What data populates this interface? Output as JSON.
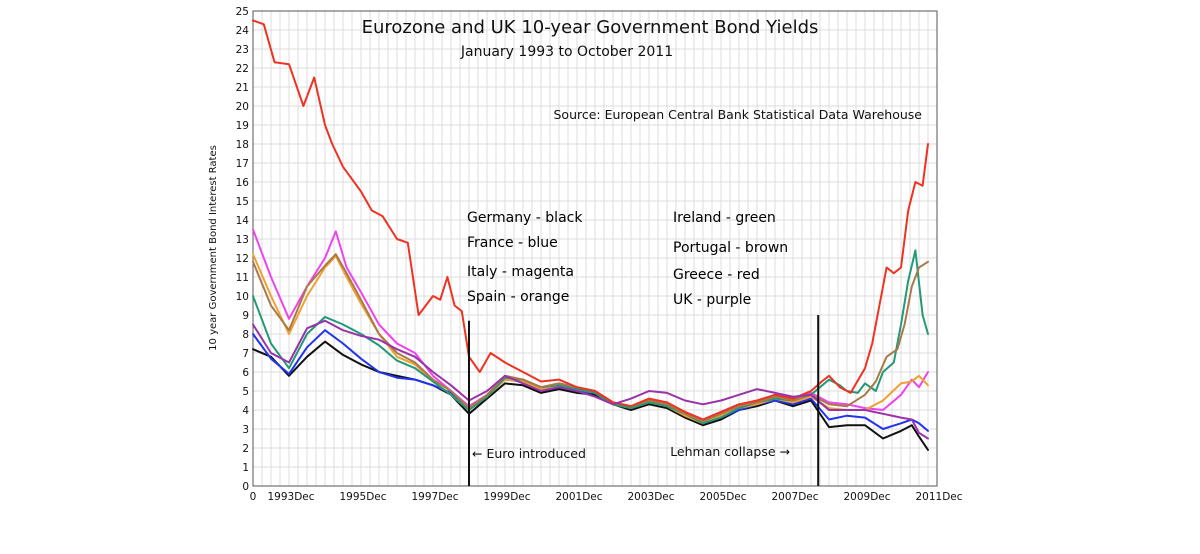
{
  "chart_data": {
    "type": "line",
    "title": "Eurozone and UK 10-year Government Bond Yields",
    "subtitle": "January 1993 to October 2011",
    "source": "Source:  European Central Bank Statistical Data Warehouse",
    "ylabel": "10 year Government Bond Interest Rates",
    "xlim": [
      1993.0,
      2012.0
    ],
    "ylim": [
      0,
      25
    ],
    "yticks": [
      0,
      1,
      2,
      3,
      4,
      5,
      6,
      7,
      8,
      9,
      10,
      11,
      12,
      13,
      14,
      15,
      16,
      17,
      18,
      19,
      20,
      21,
      22,
      23,
      24,
      25
    ],
    "xticks": [
      {
        "value": 1993.0,
        "label": "0"
      },
      {
        "value": 1994.0,
        "label": "1993Dec"
      },
      {
        "value": 1996.0,
        "label": "1995Dec"
      },
      {
        "value": 1998.0,
        "label": "1997Dec"
      },
      {
        "value": 2000.0,
        "label": "1999Dec"
      },
      {
        "value": 2002.0,
        "label": "2001Dec"
      },
      {
        "value": 2004.0,
        "label": "2003Dec"
      },
      {
        "value": 2006.0,
        "label": "2005Dec"
      },
      {
        "value": 2008.0,
        "label": "2007Dec"
      },
      {
        "value": 2010.0,
        "label": "2009Dec"
      },
      {
        "value": 2012.0,
        "label": "2011Dec"
      }
    ],
    "grid": true,
    "events": [
      {
        "x": 1999.0,
        "label": "← Euro introduced",
        "ymin": 0,
        "ymax": 8.7
      },
      {
        "x": 2008.7,
        "label": "Lehman collapse →",
        "ymin": 0,
        "ymax": 9.0
      }
    ],
    "legend": [
      {
        "label": "Germany - black",
        "color": "#111111"
      },
      {
        "label": "France - blue",
        "color": "#2233ee"
      },
      {
        "label": "Italy - magenta",
        "color": "#ee44ee"
      },
      {
        "label": "Spain - orange",
        "color": "#f0a030"
      },
      {
        "label": "Ireland - green",
        "color": "#229977"
      },
      {
        "label": "Portugal - brown",
        "color": "#a87a4a"
      },
      {
        "label": "Greece - red",
        "color": "#ee3322"
      },
      {
        "label": "UK - purple",
        "color": "#9933aa"
      }
    ],
    "series": [
      {
        "name": "Germany",
        "color": "#111111",
        "x": [
          1993.0,
          1993.5,
          1994.0,
          1994.5,
          1995.0,
          1995.5,
          1996.0,
          1996.5,
          1997.0,
          1997.5,
          1998.0,
          1998.5,
          1999.0,
          1999.5,
          2000.0,
          2000.5,
          2001.0,
          2001.5,
          2002.0,
          2002.5,
          2003.0,
          2003.5,
          2004.0,
          2004.5,
          2005.0,
          2005.5,
          2006.0,
          2006.5,
          2007.0,
          2007.5,
          2008.0,
          2008.5,
          2009.0,
          2009.5,
          2010.0,
          2010.5,
          2011.0,
          2011.3,
          2011.5,
          2011.75
        ],
        "y": [
          7.2,
          6.8,
          5.8,
          6.8,
          7.6,
          6.9,
          6.4,
          6.0,
          5.8,
          5.6,
          5.3,
          4.8,
          3.8,
          4.6,
          5.4,
          5.3,
          4.9,
          5.1,
          4.9,
          4.8,
          4.3,
          4.0,
          4.3,
          4.1,
          3.6,
          3.2,
          3.5,
          4.0,
          4.2,
          4.5,
          4.2,
          4.5,
          3.1,
          3.2,
          3.2,
          2.5,
          2.9,
          3.2,
          2.6,
          1.9
        ]
      },
      {
        "name": "France",
        "color": "#2233ee",
        "x": [
          1993.0,
          1993.5,
          1994.0,
          1994.5,
          1995.0,
          1995.5,
          1996.0,
          1996.5,
          1997.0,
          1997.5,
          1998.0,
          1998.5,
          1999.0,
          1999.5,
          2000.0,
          2000.5,
          2001.0,
          2001.5,
          2002.0,
          2002.5,
          2003.0,
          2003.5,
          2004.0,
          2004.5,
          2005.0,
          2005.5,
          2006.0,
          2006.5,
          2007.0,
          2007.5,
          2008.0,
          2008.5,
          2009.0,
          2009.5,
          2010.0,
          2010.5,
          2011.0,
          2011.3,
          2011.5,
          2011.75
        ],
        "y": [
          8.0,
          6.7,
          5.9,
          7.3,
          8.2,
          7.5,
          6.7,
          6.0,
          5.7,
          5.6,
          5.3,
          4.9,
          4.0,
          4.7,
          5.6,
          5.5,
          5.0,
          5.2,
          5.0,
          4.9,
          4.3,
          4.1,
          4.4,
          4.2,
          3.8,
          3.3,
          3.6,
          4.0,
          4.3,
          4.5,
          4.3,
          4.6,
          3.5,
          3.7,
          3.6,
          3.0,
          3.3,
          3.5,
          3.3,
          2.9
        ]
      },
      {
        "name": "Italy",
        "color": "#ee44ee",
        "x": [
          1993.0,
          1993.5,
          1994.0,
          1994.5,
          1995.0,
          1995.3,
          1995.6,
          1996.0,
          1996.5,
          1997.0,
          1997.5,
          1998.0,
          1998.5,
          1999.0,
          1999.5,
          2000.0,
          2000.5,
          2001.0,
          2001.5,
          2002.0,
          2002.5,
          2003.0,
          2003.5,
          2004.0,
          2004.5,
          2005.0,
          2005.5,
          2006.0,
          2006.5,
          2007.0,
          2007.5,
          2008.0,
          2008.5,
          2009.0,
          2009.5,
          2010.0,
          2010.5,
          2011.0,
          2011.3,
          2011.5,
          2011.75
        ],
        "y": [
          13.5,
          11.0,
          8.8,
          10.5,
          12.0,
          13.4,
          11.5,
          10.2,
          8.5,
          7.5,
          7.0,
          5.8,
          5.0,
          4.2,
          4.8,
          5.7,
          5.6,
          5.2,
          5.4,
          5.2,
          5.0,
          4.4,
          4.2,
          4.5,
          4.3,
          3.9,
          3.5,
          3.9,
          4.3,
          4.4,
          4.8,
          4.6,
          4.9,
          4.4,
          4.3,
          4.1,
          4.0,
          4.8,
          5.6,
          5.2,
          6.0
        ]
      },
      {
        "name": "Spain",
        "color": "#f0a030",
        "x": [
          1993.0,
          1993.5,
          1994.0,
          1994.5,
          1995.0,
          1995.3,
          1995.6,
          1996.0,
          1996.5,
          1997.0,
          1997.5,
          1998.0,
          1998.5,
          1999.0,
          1999.5,
          2000.0,
          2000.5,
          2001.0,
          2001.5,
          2002.0,
          2002.5,
          2003.0,
          2003.5,
          2004.0,
          2004.5,
          2005.0,
          2005.5,
          2006.0,
          2006.5,
          2007.0,
          2007.5,
          2008.0,
          2008.5,
          2009.0,
          2009.5,
          2010.0,
          2010.5,
          2011.0,
          2011.3,
          2011.5,
          2011.75
        ],
        "y": [
          12.2,
          10.0,
          8.0,
          10.0,
          11.5,
          12.1,
          11.0,
          9.6,
          8.0,
          6.8,
          6.4,
          5.5,
          4.8,
          4.0,
          4.7,
          5.6,
          5.5,
          5.1,
          5.3,
          5.1,
          4.9,
          4.3,
          4.1,
          4.4,
          4.2,
          3.7,
          3.3,
          3.7,
          4.1,
          4.3,
          4.6,
          4.4,
          4.7,
          4.1,
          4.0,
          4.0,
          4.5,
          5.4,
          5.5,
          5.8,
          5.3
        ]
      },
      {
        "name": "Ireland",
        "color": "#229977",
        "x": [
          1993.0,
          1993.5,
          1994.0,
          1994.5,
          1995.0,
          1995.5,
          1996.0,
          1996.5,
          1997.0,
          1997.5,
          1998.0,
          1998.5,
          1999.0,
          1999.5,
          2000.0,
          2000.5,
          2001.0,
          2001.5,
          2002.0,
          2002.5,
          2003.0,
          2003.5,
          2004.0,
          2004.5,
          2005.0,
          2005.5,
          2006.0,
          2006.5,
          2007.0,
          2007.5,
          2008.0,
          2008.5,
          2009.0,
          2009.3,
          2009.5,
          2009.8,
          2010.0,
          2010.3,
          2010.5,
          2010.8,
          2011.0,
          2011.2,
          2011.4,
          2011.6,
          2011.75
        ],
        "y": [
          10.0,
          7.5,
          6.2,
          8.0,
          8.9,
          8.5,
          8.0,
          7.4,
          6.6,
          6.2,
          5.5,
          4.8,
          4.0,
          4.7,
          5.7,
          5.6,
          5.2,
          5.3,
          5.1,
          4.9,
          4.3,
          4.1,
          4.4,
          4.2,
          3.8,
          3.3,
          3.6,
          4.1,
          4.4,
          4.6,
          4.5,
          4.8,
          5.6,
          5.3,
          5.0,
          4.9,
          5.4,
          5.0,
          6.0,
          6.5,
          8.5,
          10.8,
          12.4,
          9.0,
          8.0
        ]
      },
      {
        "name": "Portugal",
        "color": "#a87a4a",
        "x": [
          1993.0,
          1993.5,
          1994.0,
          1994.5,
          1995.0,
          1995.3,
          1995.6,
          1996.0,
          1996.5,
          1997.0,
          1997.5,
          1998.0,
          1998.5,
          1999.0,
          1999.5,
          2000.0,
          2000.5,
          2001.0,
          2001.5,
          2002.0,
          2002.5,
          2003.0,
          2003.5,
          2004.0,
          2004.5,
          2005.0,
          2005.5,
          2006.0,
          2006.5,
          2007.0,
          2007.5,
          2008.0,
          2008.5,
          2009.0,
          2009.5,
          2010.0,
          2010.3,
          2010.6,
          2010.9,
          2011.1,
          2011.3,
          2011.5,
          2011.75
        ],
        "y": [
          11.8,
          9.5,
          8.2,
          10.5,
          11.6,
          12.2,
          11.2,
          9.8,
          8.0,
          7.0,
          6.5,
          5.6,
          5.0,
          4.1,
          4.8,
          5.8,
          5.6,
          5.2,
          5.4,
          5.2,
          5.0,
          4.4,
          4.2,
          4.5,
          4.3,
          3.8,
          3.4,
          3.8,
          4.2,
          4.4,
          4.7,
          4.5,
          4.8,
          4.3,
          4.2,
          4.8,
          5.5,
          6.8,
          7.2,
          8.5,
          10.5,
          11.5,
          11.8
        ]
      },
      {
        "name": "Greece",
        "color": "#ee3322",
        "x": [
          1993.0,
          1993.3,
          1993.6,
          1994.0,
          1994.4,
          1994.7,
          1995.0,
          1995.2,
          1995.5,
          1996.0,
          1996.3,
          1996.6,
          1997.0,
          1997.3,
          1997.6,
          1998.0,
          1998.2,
          1998.4,
          1998.6,
          1998.8,
          1999.0,
          1999.3,
          1999.6,
          2000.0,
          2000.3,
          2000.6,
          2001.0,
          2001.5,
          2002.0,
          2002.5,
          2003.0,
          2003.5,
          2004.0,
          2004.5,
          2005.0,
          2005.5,
          2006.0,
          2006.5,
          2007.0,
          2007.5,
          2008.0,
          2008.5,
          2008.8,
          2009.0,
          2009.3,
          2009.6,
          2010.0,
          2010.2,
          2010.4,
          2010.6,
          2010.8,
          2011.0,
          2011.2,
          2011.4,
          2011.6,
          2011.75
        ],
        "y": [
          24.5,
          24.3,
          22.3,
          22.2,
          20.0,
          21.5,
          19.0,
          18.0,
          16.8,
          15.5,
          14.5,
          14.2,
          13.0,
          12.8,
          9.0,
          10.0,
          9.8,
          11.0,
          9.5,
          9.2,
          6.8,
          6.0,
          7.0,
          6.5,
          6.2,
          5.9,
          5.5,
          5.6,
          5.2,
          5.0,
          4.4,
          4.2,
          4.6,
          4.4,
          3.9,
          3.5,
          3.9,
          4.3,
          4.5,
          4.8,
          4.6,
          5.0,
          5.5,
          5.8,
          5.2,
          4.9,
          6.2,
          7.5,
          9.5,
          11.5,
          11.2,
          11.5,
          14.5,
          16.0,
          15.8,
          18.0
        ]
      },
      {
        "name": "UK",
        "color": "#9933aa",
        "x": [
          1993.0,
          1993.5,
          1994.0,
          1994.5,
          1995.0,
          1995.5,
          1996.0,
          1996.5,
          1997.0,
          1997.5,
          1998.0,
          1998.5,
          1999.0,
          1999.5,
          2000.0,
          2000.5,
          2001.0,
          2001.5,
          2002.0,
          2002.5,
          2003.0,
          2003.5,
          2004.0,
          2004.5,
          2005.0,
          2005.5,
          2006.0,
          2006.5,
          2007.0,
          2007.5,
          2008.0,
          2008.5,
          2009.0,
          2009.5,
          2010.0,
          2010.5,
          2011.0,
          2011.3,
          2011.5,
          2011.75
        ],
        "y": [
          8.5,
          7.0,
          6.5,
          8.3,
          8.7,
          8.2,
          7.9,
          7.7,
          7.2,
          6.8,
          6.0,
          5.3,
          4.5,
          5.0,
          5.8,
          5.4,
          5.0,
          5.2,
          5.0,
          4.7,
          4.3,
          4.6,
          5.0,
          4.9,
          4.5,
          4.3,
          4.5,
          4.8,
          5.1,
          4.9,
          4.7,
          4.8,
          4.0,
          4.0,
          4.0,
          3.8,
          3.6,
          3.5,
          2.8,
          2.5
        ]
      }
    ]
  }
}
